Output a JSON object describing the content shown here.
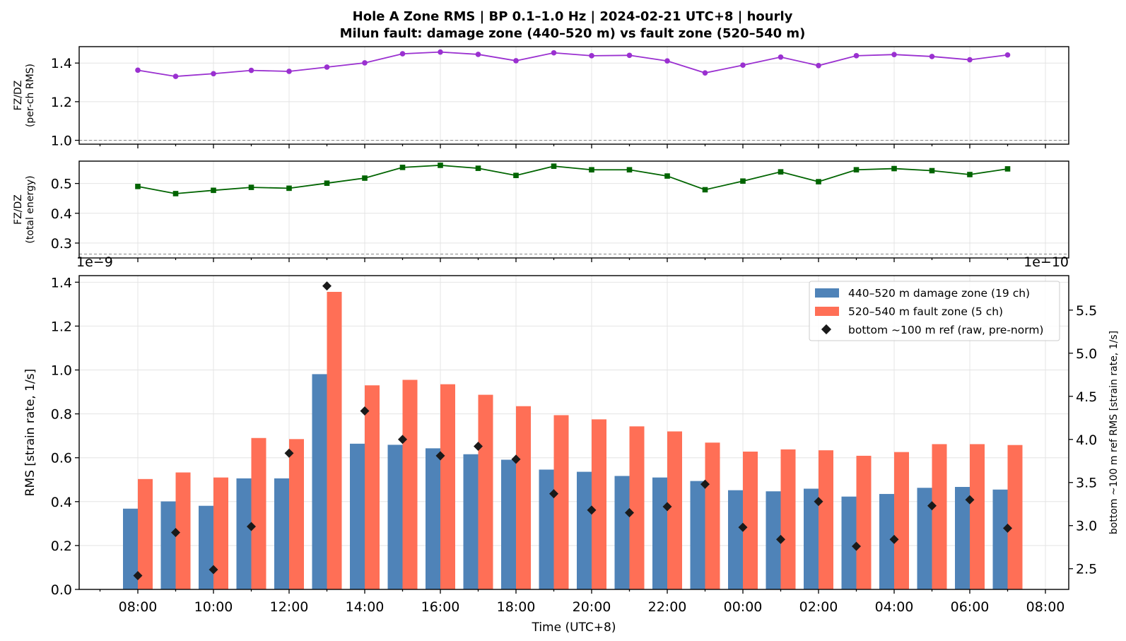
{
  "figure": {
    "title_line1": "Hole A Zone RMS  |  BP 0.1–1.0 Hz  |  2024-02-21 UTC+8  |  hourly",
    "title_line2": "Milun fault: damage zone (440–520 m) vs fault zone (520–540 m)"
  },
  "chart_data": [
    {
      "type": "line",
      "name": "ratio-per-channel",
      "ylabel_line1": "FZ/DZ",
      "ylabel_line2": "(per-ch RMS)",
      "ylim": [
        0.98,
        1.485
      ],
      "yticks": [
        1.0,
        1.2,
        1.4
      ],
      "ytick_labels": [
        "1.0",
        "1.2",
        "1.4"
      ],
      "reference_line": 1.0,
      "color": "#9a30d0",
      "marker": "circle",
      "grid": true,
      "values": [
        1.363,
        1.331,
        1.345,
        1.362,
        1.357,
        1.379,
        1.401,
        1.448,
        1.457,
        1.445,
        1.412,
        1.453,
        1.438,
        1.44,
        1.411,
        1.349,
        1.389,
        1.431,
        1.387,
        1.438,
        1.444,
        1.434,
        1.417,
        1.442
      ]
    },
    {
      "type": "line",
      "name": "ratio-total-energy",
      "ylabel_line1": "FZ/DZ",
      "ylabel_line2": "(total energy)",
      "ylim": [
        0.25,
        0.575
      ],
      "yticks": [
        0.3,
        0.4,
        0.5
      ],
      "ytick_labels": [
        "0.3",
        "0.4",
        "0.5"
      ],
      "reference_line": 0.263,
      "color": "#006400",
      "marker": "square",
      "grid": true,
      "values": [
        0.49,
        0.466,
        0.477,
        0.487,
        0.484,
        0.501,
        0.518,
        0.554,
        0.561,
        0.551,
        0.527,
        0.558,
        0.546,
        0.546,
        0.525,
        0.479,
        0.508,
        0.539,
        0.506,
        0.546,
        0.55,
        0.543,
        0.53,
        0.549
      ]
    },
    {
      "type": "bar",
      "name": "zone-rms",
      "x": [
        "08:00",
        "09:00",
        "10:00",
        "11:00",
        "12:00",
        "13:00",
        "14:00",
        "15:00",
        "16:00",
        "17:00",
        "18:00",
        "19:00",
        "20:00",
        "21:00",
        "22:00",
        "23:00",
        "00:00",
        "01:00",
        "02:00",
        "03:00",
        "04:00",
        "05:00",
        "06:00",
        "07:00"
      ],
      "xlabel": "Time (UTC+8)",
      "xtick_labels": [
        "08:00",
        "10:00",
        "12:00",
        "14:00",
        "16:00",
        "18:00",
        "20:00",
        "22:00",
        "00:00",
        "02:00",
        "04:00",
        "06:00",
        "08:00"
      ],
      "ylabel": "RMS  [strain rate, 1/s]",
      "ylim": [
        0.0,
        1.43
      ],
      "yticks": [
        0.0,
        0.2,
        0.4,
        0.6,
        0.8,
        1.0,
        1.2,
        1.4
      ],
      "ytick_labels": [
        "0.0",
        "0.2",
        "0.4",
        "0.6",
        "0.8",
        "1.0",
        "1.2",
        "1.4"
      ],
      "y_offset_label": "1e−9",
      "y2label": "bottom ~100 m ref RMS  [strain rate, 1/s]",
      "y2lim": [
        2.26,
        5.9
      ],
      "y2ticks": [
        2.5,
        3.0,
        3.5,
        4.0,
        4.5,
        5.0,
        5.5
      ],
      "y2tick_labels": [
        "2.5",
        "3.0",
        "3.5",
        "4.0",
        "4.5",
        "5.0",
        "5.5"
      ],
      "y2_offset_label": "1e−10",
      "legend": "top-right",
      "grid": true,
      "series": [
        {
          "name": "440–520 m  damage zone (19 ch)",
          "color": "#4f83b8",
          "axis": "left",
          "values": [
            0.368,
            0.401,
            0.381,
            0.506,
            0.506,
            0.981,
            0.664,
            0.659,
            0.643,
            0.616,
            0.591,
            0.546,
            0.536,
            0.517,
            0.51,
            0.494,
            0.452,
            0.447,
            0.459,
            0.423,
            0.435,
            0.463,
            0.467,
            0.455
          ]
        },
        {
          "name": "520–540 m  fault zone (5 ch)",
          "color": "#ff6f56",
          "axis": "left",
          "values": [
            0.503,
            0.533,
            0.51,
            0.69,
            0.685,
            1.356,
            0.93,
            0.955,
            0.935,
            0.887,
            0.835,
            0.794,
            0.775,
            0.743,
            0.72,
            0.669,
            0.628,
            0.638,
            0.634,
            0.609,
            0.626,
            0.662,
            0.662,
            0.658
          ]
        },
        {
          "name": "bottom ~100 m ref (raw, pre-norm)",
          "color": "#1a1a1a",
          "axis": "right",
          "marker": "diamond",
          "values": [
            2.42,
            2.92,
            2.49,
            2.99,
            3.84,
            5.78,
            4.33,
            4.0,
            3.81,
            3.92,
            3.77,
            3.37,
            3.18,
            3.15,
            3.22,
            3.48,
            2.98,
            2.84,
            3.28,
            2.76,
            2.84,
            3.23,
            3.3,
            2.97
          ]
        }
      ]
    }
  ]
}
